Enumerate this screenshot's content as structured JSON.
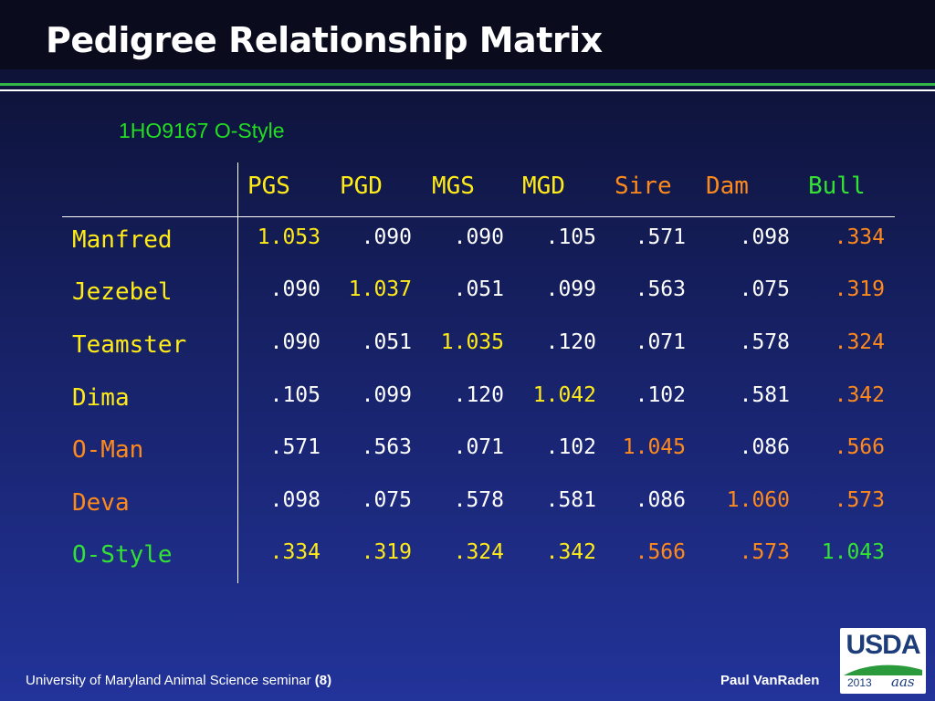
{
  "slide": {
    "title": "Pedigree Relationship Matrix",
    "subtitle": "1HO9167 O-Style"
  },
  "colors": {
    "white": "#ffffff",
    "yellow": "#ffeb18",
    "orange": "#ff8a1c",
    "green": "#33e233",
    "subtitle_green": "#22dd22",
    "usda_blue": "#1d3c7a",
    "usda_green": "#2a9a3c"
  },
  "matrix": {
    "columns": [
      {
        "label": "PGS",
        "color": "yellow"
      },
      {
        "label": "PGD",
        "color": "yellow"
      },
      {
        "label": "MGS",
        "color": "yellow"
      },
      {
        "label": "MGD",
        "color": "yellow"
      },
      {
        "label": "Sire",
        "color": "orange"
      },
      {
        "label": "Dam",
        "color": "orange"
      },
      {
        "label": "Bull",
        "color": "green"
      }
    ],
    "rows": [
      {
        "label": "Manfred",
        "color": "yellow",
        "values": [
          {
            "text": "1.053",
            "color": "yellow"
          },
          {
            "text": ".090",
            "color": "white"
          },
          {
            "text": ".090",
            "color": "white"
          },
          {
            "text": ".105",
            "color": "white"
          },
          {
            "text": ".571",
            "color": "white"
          },
          {
            "text": ".098",
            "color": "white"
          },
          {
            "text": ".334",
            "color": "orange"
          }
        ]
      },
      {
        "label": "Jezebel",
        "color": "yellow",
        "values": [
          {
            "text": ".090",
            "color": "white"
          },
          {
            "text": "1.037",
            "color": "yellow"
          },
          {
            "text": ".051",
            "color": "white"
          },
          {
            "text": ".099",
            "color": "white"
          },
          {
            "text": ".563",
            "color": "white"
          },
          {
            "text": ".075",
            "color": "white"
          },
          {
            "text": ".319",
            "color": "orange"
          }
        ]
      },
      {
        "label": "Teamster",
        "color": "yellow",
        "values": [
          {
            "text": ".090",
            "color": "white"
          },
          {
            "text": ".051",
            "color": "white"
          },
          {
            "text": "1.035",
            "color": "yellow"
          },
          {
            "text": ".120",
            "color": "white"
          },
          {
            "text": ".071",
            "color": "white"
          },
          {
            "text": ".578",
            "color": "white"
          },
          {
            "text": ".324",
            "color": "orange"
          }
        ]
      },
      {
        "label": "Dima",
        "color": "yellow",
        "values": [
          {
            "text": ".105",
            "color": "white"
          },
          {
            "text": ".099",
            "color": "white"
          },
          {
            "text": ".120",
            "color": "white"
          },
          {
            "text": "1.042",
            "color": "yellow"
          },
          {
            "text": ".102",
            "color": "white"
          },
          {
            "text": ".581",
            "color": "white"
          },
          {
            "text": ".342",
            "color": "orange"
          }
        ]
      },
      {
        "label": "O-Man",
        "color": "orange",
        "values": [
          {
            "text": ".571",
            "color": "white"
          },
          {
            "text": ".563",
            "color": "white"
          },
          {
            "text": ".071",
            "color": "white"
          },
          {
            "text": ".102",
            "color": "white"
          },
          {
            "text": "1.045",
            "color": "orange"
          },
          {
            "text": ".086",
            "color": "white"
          },
          {
            "text": ".566",
            "color": "orange"
          }
        ]
      },
      {
        "label": "Deva",
        "color": "orange",
        "values": [
          {
            "text": ".098",
            "color": "white"
          },
          {
            "text": ".075",
            "color": "white"
          },
          {
            "text": ".578",
            "color": "white"
          },
          {
            "text": ".581",
            "color": "white"
          },
          {
            "text": ".086",
            "color": "white"
          },
          {
            "text": "1.060",
            "color": "orange"
          },
          {
            "text": ".573",
            "color": "orange"
          }
        ]
      },
      {
        "label": "O-Style",
        "color": "green",
        "values": [
          {
            "text": ".334",
            "color": "yellow"
          },
          {
            "text": ".319",
            "color": "yellow"
          },
          {
            "text": ".324",
            "color": "yellow"
          },
          {
            "text": ".342",
            "color": "yellow"
          },
          {
            "text": ".566",
            "color": "orange"
          },
          {
            "text": ".573",
            "color": "orange"
          },
          {
            "text": "1.043",
            "color": "green"
          }
        ]
      }
    ]
  },
  "footer": {
    "left_text": "University of Maryland Animal Science seminar ",
    "left_page": "(8)",
    "right_text": "Paul VanRaden"
  },
  "logo": {
    "text": "USDA",
    "year": "2013",
    "mark": "aas"
  }
}
